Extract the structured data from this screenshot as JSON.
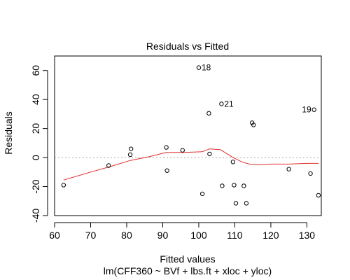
{
  "chart_data": {
    "type": "scatter",
    "title": "Residuals vs Fitted",
    "xlabel": "Fitted values",
    "ylabel": "Residuals",
    "subtitle": "lm(CFF360 ~ BVf + lbs.ft + xloc + yloc)",
    "xlim": [
      60,
      134
    ],
    "ylim": [
      -40,
      70
    ],
    "xticks": [
      60,
      70,
      80,
      90,
      100,
      110,
      120,
      130
    ],
    "yticks": [
      -40,
      -20,
      0,
      20,
      40,
      60
    ],
    "grid": false,
    "legend": "none",
    "reference_line": {
      "y": 0,
      "style": "dotted",
      "color": "#a6a6a6"
    },
    "points": [
      {
        "x": 62.5,
        "y": -19
      },
      {
        "x": 75.0,
        "y": -5.5
      },
      {
        "x": 81.0,
        "y": 2
      },
      {
        "x": 81.2,
        "y": 6
      },
      {
        "x": 91.0,
        "y": 7
      },
      {
        "x": 91.2,
        "y": -9
      },
      {
        "x": 95.5,
        "y": 5
      },
      {
        "x": 100.0,
        "y": 62,
        "label": "18"
      },
      {
        "x": 101.0,
        "y": -25
      },
      {
        "x": 102.8,
        "y": 30.5
      },
      {
        "x": 103.0,
        "y": 2.5
      },
      {
        "x": 106.3,
        "y": 37,
        "label": "21"
      },
      {
        "x": 106.5,
        "y": -19.5
      },
      {
        "x": 109.5,
        "y": -3
      },
      {
        "x": 109.8,
        "y": -19
      },
      {
        "x": 110.3,
        "y": -31.5
      },
      {
        "x": 112.5,
        "y": -19.5
      },
      {
        "x": 113.2,
        "y": -31.5
      },
      {
        "x": 114.8,
        "y": 24
      },
      {
        "x": 115.2,
        "y": 22.5
      },
      {
        "x": 125.0,
        "y": -8
      },
      {
        "x": 131.0,
        "y": -11
      },
      {
        "x": 132.0,
        "y": 33,
        "label": "19"
      },
      {
        "x": 133.2,
        "y": -26
      }
    ],
    "smooth_line": {
      "color": "#df2c2c",
      "x": [
        62.5,
        70,
        75,
        81,
        86,
        91,
        96,
        101,
        103,
        106,
        109.5,
        112,
        114,
        116,
        120,
        125,
        130,
        133.2
      ],
      "y": [
        -15.5,
        -10,
        -6.5,
        -2,
        0.5,
        3.5,
        3.5,
        4,
        6,
        5.5,
        0,
        -3,
        -4.5,
        -5,
        -4.5,
        -4.5,
        -4,
        -4
      ]
    }
  }
}
